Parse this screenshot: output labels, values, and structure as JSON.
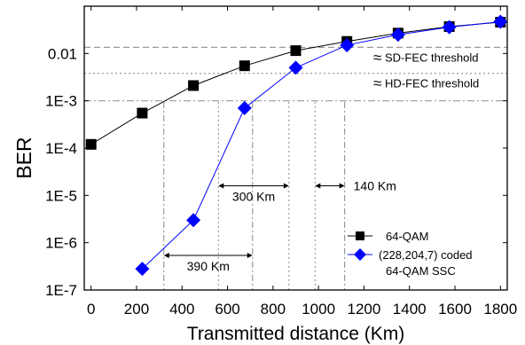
{
  "chart_data": {
    "type": "line",
    "xlabel": "Transmitted distance (Km)",
    "ylabel": "BER",
    "xlim": [
      -30,
      1830
    ],
    "ylim": [
      1e-07,
      0.1
    ],
    "log_y": true,
    "x_ticks": [
      0,
      200,
      400,
      600,
      800,
      1000,
      1200,
      1400,
      1600,
      1800
    ],
    "x_tick_labels": [
      "0",
      "200",
      "400",
      "600",
      "800",
      "1000",
      "1200",
      "1400",
      "1600",
      "1800"
    ],
    "y_ticks": [
      1e-07,
      1e-06,
      1e-05,
      0.0001,
      0.001,
      0.01
    ],
    "y_tick_labels": [
      "1E-7",
      "1E-6",
      "1E-5",
      "1E-4",
      "1E-3",
      "0.01"
    ],
    "series": [
      {
        "name": "64-QAM",
        "color": "#000000",
        "marker": "square",
        "x": [
          0,
          225,
          450,
          675,
          900,
          1125,
          1350,
          1575,
          1800
        ],
        "y": [
          0.00012,
          0.00055,
          0.0021,
          0.0055,
          0.0115,
          0.018,
          0.027,
          0.037,
          0.046
        ]
      },
      {
        "name": "(228,204,7) coded 64-QAM SSC",
        "color": "#0000ff",
        "marker": "diamond",
        "x": [
          225,
          450,
          675,
          900,
          1125,
          1350,
          1575,
          1800
        ],
        "y": [
          2.8e-07,
          3e-06,
          0.0007,
          0.005,
          0.015,
          0.025,
          0.036,
          0.047
        ]
      }
    ],
    "thresholds": [
      {
        "label": "SD-FEC threshold",
        "symbol": "≈",
        "value": 0.0135
      },
      {
        "label": "HD-FEC threshold",
        "symbol": "≈",
        "value": 0.0038
      },
      {
        "label": "",
        "symbol": "",
        "value": 0.001
      }
    ],
    "vertical_guides": [
      320,
      560,
      710,
      870,
      985,
      1115
    ],
    "annotations": [
      {
        "text": "300 Km",
        "x_from": 560,
        "x_to": 870,
        "y": 1.6e-05
      },
      {
        "text": "140 Km",
        "x_from": 985,
        "x_to": 1115,
        "y": 1.6e-05
      },
      {
        "text": "390 Km",
        "x_from": 320,
        "x_to": 710,
        "y": 5.4e-07
      }
    ],
    "legend_position": "bottom-right",
    "grid": false
  }
}
